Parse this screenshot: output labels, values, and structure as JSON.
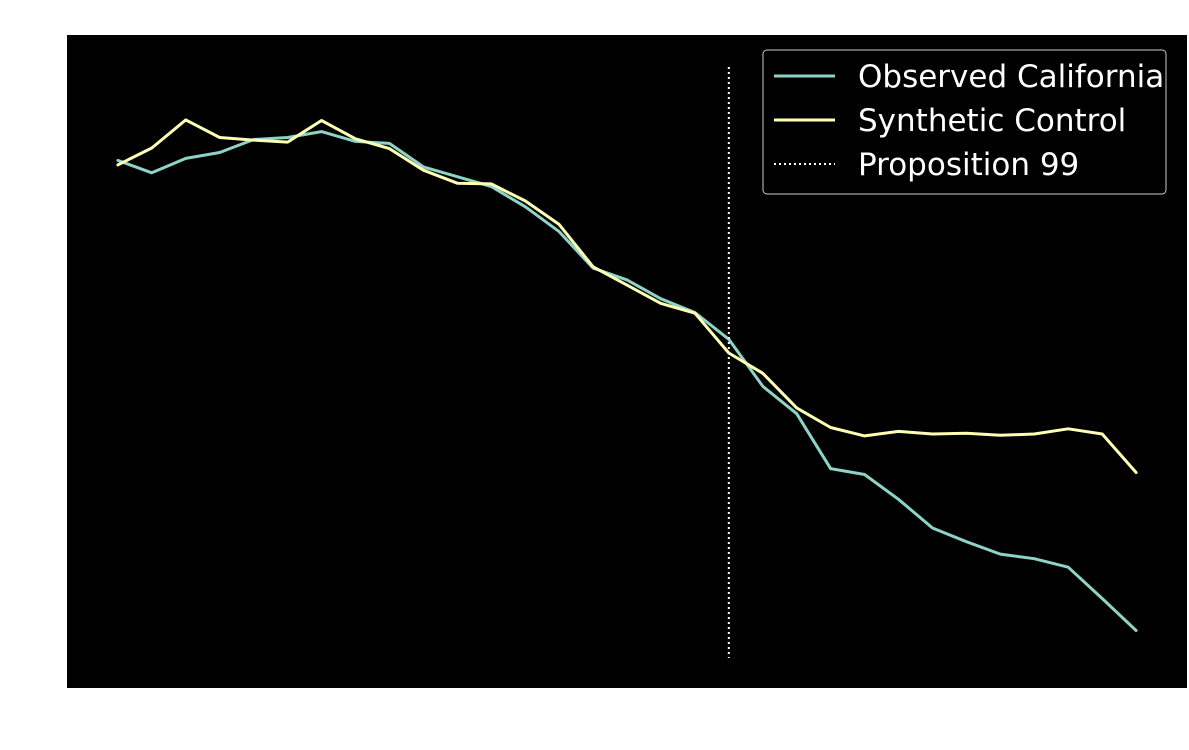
{
  "chart_data": {
    "type": "line",
    "title": "",
    "xlabel": "",
    "ylabel": "",
    "x": [
      1970,
      1971,
      1972,
      1973,
      1974,
      1975,
      1976,
      1977,
      1978,
      1979,
      1980,
      1981,
      1982,
      1983,
      1984,
      1985,
      1986,
      1987,
      1988,
      1989,
      1990,
      1991,
      1992,
      1993,
      1994,
      1995,
      1996,
      1997,
      1998,
      1999,
      2000
    ],
    "xlim": [
      1968.5,
      2001.5
    ],
    "ylim": [
      35,
      135
    ],
    "grid": false,
    "legend_position": "top-right",
    "background": "#000000",
    "series": [
      {
        "name": "Observed California",
        "color": "#8dd3c7",
        "line_style": "solid",
        "values": [
          115.8,
          113.9,
          116.1,
          117.0,
          119.0,
          119.3,
          120.2,
          118.7,
          118.4,
          114.8,
          113.3,
          111.8,
          108.7,
          104.9,
          99.3,
          97.5,
          94.6,
          92.5,
          88.4,
          81.2,
          77.0,
          68.6,
          67.7,
          63.9,
          59.5,
          57.4,
          55.5,
          54.8,
          53.5,
          48.7,
          43.8
        ]
      },
      {
        "name": "Synthetic Control",
        "color": "#ffffb3",
        "line_style": "solid",
        "values": [
          115.1,
          117.7,
          122.0,
          119.3,
          118.9,
          118.6,
          121.9,
          119.1,
          117.6,
          114.3,
          112.3,
          112.2,
          109.6,
          106.0,
          99.5,
          96.7,
          93.9,
          92.4,
          86.3,
          83.2,
          77.9,
          74.9,
          73.6,
          74.3,
          73.9,
          74.0,
          73.7,
          73.9,
          74.7,
          73.9,
          68.0
        ]
      }
    ],
    "vlines": [
      {
        "name": "Proposition 99",
        "x": 1988,
        "color": "#ffffff",
        "line_style": "dotted"
      }
    ]
  }
}
